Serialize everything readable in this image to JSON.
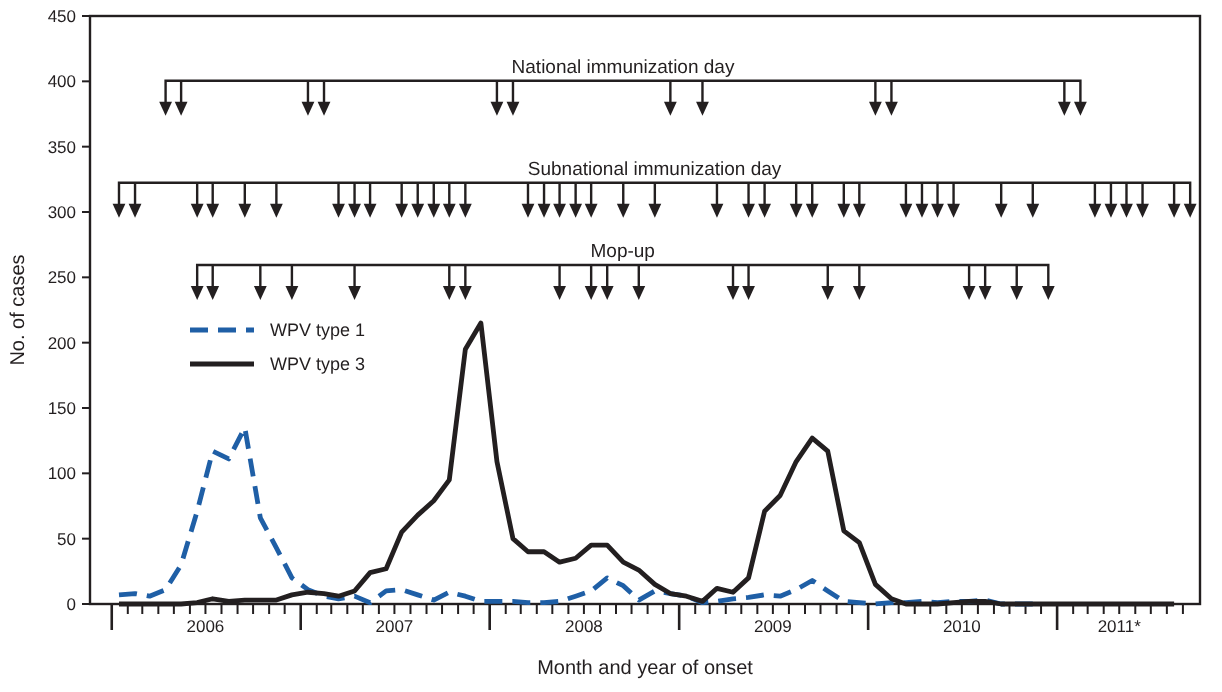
{
  "chart_data": {
    "type": "line",
    "xlabel": "Month and year of onset",
    "ylabel": "No. of cases",
    "x": [
      "2006-01-15",
      "2006-02-15",
      "2006-03-15",
      "2006-04-15",
      "2006-05-15",
      "2006-06-15",
      "2006-07-15",
      "2006-08-15",
      "2006-09-15",
      "2006-10-15",
      "2006-11-15",
      "2006-12-15",
      "2007-01-15",
      "2007-02-15",
      "2007-03-15",
      "2007-04-15",
      "2007-05-15",
      "2007-06-15",
      "2007-07-15",
      "2007-08-15",
      "2007-09-15",
      "2007-10-15",
      "2007-11-15",
      "2007-12-15",
      "2008-01-15",
      "2008-02-15",
      "2008-03-15",
      "2008-04-15",
      "2008-05-15",
      "2008-06-15",
      "2008-07-15",
      "2008-08-15",
      "2008-09-15",
      "2008-10-15",
      "2008-11-15",
      "2008-12-15",
      "2009-01-15",
      "2009-02-15",
      "2009-03-15",
      "2009-04-15",
      "2009-05-15",
      "2009-06-15",
      "2009-07-15",
      "2009-08-15",
      "2009-09-15",
      "2009-10-15",
      "2009-11-15",
      "2009-12-15",
      "2010-01-15",
      "2010-02-15",
      "2010-03-15",
      "2010-04-15",
      "2010-05-15",
      "2010-06-15",
      "2010-07-15",
      "2010-08-15",
      "2010-09-15",
      "2010-10-15",
      "2010-11-15",
      "2010-12-15",
      "2011-01-15",
      "2011-02-15",
      "2011-03-15",
      "2011-04-15",
      "2011-05-15",
      "2011-06-15",
      "2011-07-15",
      "2011-08-15"
    ],
    "series": [
      {
        "name": "WPV type 1",
        "color": "#1f5fa6",
        "line_style": "dashed",
        "values": [
          7,
          8,
          6,
          11,
          30,
          71,
          117,
          111,
          135,
          66,
          43,
          20,
          11,
          6,
          4,
          6,
          1,
          10,
          11,
          7,
          3,
          9,
          6,
          2,
          2,
          2,
          1,
          1,
          2,
          6,
          10,
          20,
          14,
          3,
          10,
          8,
          6,
          1,
          2,
          4,
          5,
          7,
          6,
          11,
          18,
          10,
          2,
          1,
          0,
          1,
          1,
          2,
          1,
          2,
          2,
          3,
          0,
          0,
          0,
          null,
          null,
          null,
          null,
          null,
          null,
          null,
          null,
          null
        ]
      },
      {
        "name": "WPV type 3",
        "color": "#231f20",
        "line_style": "solid",
        "values": [
          0,
          0,
          0,
          0,
          0,
          1,
          4,
          2,
          3,
          3,
          3,
          7,
          9,
          8,
          6,
          10,
          24,
          27,
          55,
          68,
          79,
          95,
          195,
          215,
          109,
          50,
          40,
          40,
          32,
          35,
          45,
          45,
          32,
          26,
          15,
          8,
          6,
          2,
          12,
          9,
          20,
          71,
          83,
          109,
          127,
          117,
          56,
          47,
          15,
          4,
          0,
          0,
          0,
          1,
          2,
          2,
          0,
          0,
          0,
          0,
          0,
          0,
          0,
          0,
          0,
          0,
          0,
          0
        ]
      },
      {
        "name": "National immunization day",
        "type": "scatter",
        "marker": "triangle",
        "color": "#231f20",
        "x": [
          "2006-04-15",
          "2006-05-15",
          "2007-01-15",
          "2007-02-15",
          "2008-01-15",
          "2008-02-15",
          "2008-12-15",
          "2009-02-15",
          "2010-01-15",
          "2010-02-15",
          "2011-01-15",
          "2011-02-15"
        ],
        "values": [
          379,
          379,
          379,
          379,
          379,
          379,
          379,
          379,
          379,
          379,
          379,
          379
        ]
      },
      {
        "name": "Subnational immunization day",
        "type": "scatter",
        "marker": "triangle",
        "color": "#231f20",
        "x": [
          "2006-01-15",
          "2006-02-15",
          "2006-06-15",
          "2006-07-15",
          "2006-09-15",
          "2006-11-15",
          "2007-03-15",
          "2007-04-15",
          "2007-05-15",
          "2007-07-15",
          "2007-08-15",
          "2007-09-15",
          "2007-10-15",
          "2007-11-15",
          "2008-03-15",
          "2008-04-15",
          "2008-05-15",
          "2008-06-15",
          "2008-07-15",
          "2008-09-15",
          "2008-11-15",
          "2009-03-15",
          "2009-05-15",
          "2009-06-15",
          "2009-08-15",
          "2009-09-15",
          "2009-11-15",
          "2009-12-15",
          "2010-03-15",
          "2010-04-15",
          "2010-05-15",
          "2010-06-15",
          "2010-09-15",
          "2010-11-15",
          "2011-03-15",
          "2011-04-15",
          "2011-05-15",
          "2011-06-15",
          "2011-08-15",
          "2011-09-15"
        ],
        "values": [
          301,
          301,
          301,
          301,
          301,
          301,
          301,
          301,
          301,
          301,
          301,
          301,
          301,
          301,
          301,
          301,
          301,
          301,
          301,
          301,
          301,
          301,
          301,
          301,
          301,
          301,
          301,
          301,
          301,
          301,
          301,
          301,
          301,
          301,
          301,
          301,
          301,
          301,
          301,
          301
        ]
      },
      {
        "name": "Mop-up",
        "type": "scatter",
        "marker": "triangle",
        "color": "#231f20",
        "x": [
          "2006-06-15",
          "2006-07-15",
          "2006-10-15",
          "2006-12-15",
          "2007-04-15",
          "2007-10-15",
          "2007-11-15",
          "2008-05-15",
          "2008-07-15",
          "2008-08-15",
          "2008-10-15",
          "2009-04-15",
          "2009-05-15",
          "2009-10-15",
          "2009-12-15",
          "2010-07-15",
          "2010-08-15",
          "2010-10-15",
          "2010-12-15"
        ],
        "values": [
          238,
          238,
          238,
          238,
          238,
          238,
          238,
          238,
          238,
          238,
          238,
          238,
          238,
          238,
          238,
          238,
          238,
          238,
          238
        ]
      }
    ],
    "xlim": [
      "2005-11-20",
      "2011-10-04"
    ],
    "xticks": [
      {
        "value": "2006-01-01",
        "label": null
      },
      {
        "value": "2006-02-01",
        "label": null
      },
      {
        "value": "2006-03-01",
        "label": null
      },
      {
        "value": "2006-04-01",
        "label": null
      },
      {
        "value": "2006-05-01",
        "label": null
      },
      {
        "value": "2006-06-01",
        "label": null
      },
      {
        "value": "2006-07-01",
        "label": "2006"
      },
      {
        "value": "2006-08-01",
        "label": null
      },
      {
        "value": "2006-09-01",
        "label": null
      },
      {
        "value": "2006-10-01",
        "label": null
      },
      {
        "value": "2006-11-01",
        "label": null
      },
      {
        "value": "2006-12-01",
        "label": null
      },
      {
        "value": "2007-01-01",
        "label": null
      },
      {
        "value": "2007-02-01",
        "label": null
      },
      {
        "value": "2007-03-01",
        "label": null
      },
      {
        "value": "2007-04-01",
        "label": null
      },
      {
        "value": "2007-05-01",
        "label": null
      },
      {
        "value": "2007-06-01",
        "label": null
      },
      {
        "value": "2007-07-01",
        "label": "2007"
      },
      {
        "value": "2007-08-01",
        "label": null
      },
      {
        "value": "2007-09-01",
        "label": null
      },
      {
        "value": "2007-10-01",
        "label": null
      },
      {
        "value": "2007-11-01",
        "label": null
      },
      {
        "value": "2007-12-01",
        "label": null
      },
      {
        "value": "2008-01-01",
        "label": null
      },
      {
        "value": "2008-02-01",
        "label": null
      },
      {
        "value": "2008-03-01",
        "label": null
      },
      {
        "value": "2008-04-01",
        "label": null
      },
      {
        "value": "2008-05-01",
        "label": null
      },
      {
        "value": "2008-06-01",
        "label": null
      },
      {
        "value": "2008-07-01",
        "label": "2008"
      },
      {
        "value": "2008-08-01",
        "label": null
      },
      {
        "value": "2008-09-01",
        "label": null
      },
      {
        "value": "2008-10-01",
        "label": null
      },
      {
        "value": "2008-11-01",
        "label": null
      },
      {
        "value": "2008-12-01",
        "label": null
      },
      {
        "value": "2009-01-01",
        "label": null
      },
      {
        "value": "2009-02-01",
        "label": null
      },
      {
        "value": "2009-03-01",
        "label": null
      },
      {
        "value": "2009-04-01",
        "label": null
      },
      {
        "value": "2009-05-01",
        "label": null
      },
      {
        "value": "2009-06-01",
        "label": null
      },
      {
        "value": "2009-07-01",
        "label": "2009"
      },
      {
        "value": "2009-08-01",
        "label": null
      },
      {
        "value": "2009-09-01",
        "label": null
      },
      {
        "value": "2009-10-01",
        "label": null
      },
      {
        "value": "2009-11-01",
        "label": null
      },
      {
        "value": "2009-12-01",
        "label": null
      },
      {
        "value": "2010-01-01",
        "label": null
      },
      {
        "value": "2010-02-01",
        "label": null
      },
      {
        "value": "2010-03-01",
        "label": null
      },
      {
        "value": "2010-04-01",
        "label": null
      },
      {
        "value": "2010-05-01",
        "label": null
      },
      {
        "value": "2010-06-01",
        "label": null
      },
      {
        "value": "2010-07-01",
        "label": "2010"
      },
      {
        "value": "2010-08-01",
        "label": null
      },
      {
        "value": "2010-09-01",
        "label": null
      },
      {
        "value": "2010-10-01",
        "label": null
      },
      {
        "value": "2010-11-01",
        "label": null
      },
      {
        "value": "2010-12-01",
        "label": null
      },
      {
        "value": "2011-01-01",
        "label": null
      },
      {
        "value": "2011-02-01",
        "label": null
      },
      {
        "value": "2011-03-01",
        "label": null
      },
      {
        "value": "2011-04-01",
        "label": null
      },
      {
        "value": "2011-05-01",
        "label": "2011*"
      },
      {
        "value": "2011-06-01",
        "label": null
      },
      {
        "value": "2011-07-01",
        "label": null
      },
      {
        "value": "2011-08-01",
        "label": null
      },
      {
        "value": "2011-09-01",
        "label": null
      }
    ],
    "ylim": [
      0,
      450
    ],
    "yticks": [
      0,
      50,
      100,
      150,
      200,
      250,
      300,
      350,
      400,
      450
    ],
    "grid": false,
    "legend": "left",
    "marker": "none"
  }
}
